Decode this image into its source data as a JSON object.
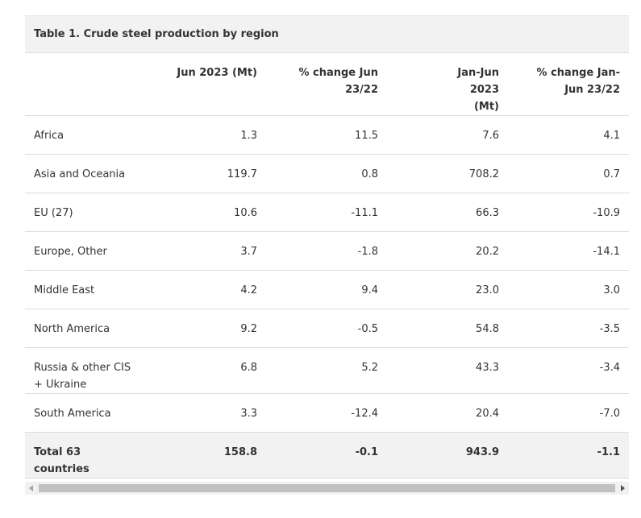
{
  "table": {
    "title": "Table 1. Crude steel production by region",
    "header": [
      "",
      "Jun 2023 (Mt)",
      "% change Jun 23/22",
      "Jan-Jun 2023 (Mt)",
      "% change Jan-Jun 23/22"
    ],
    "rows": [
      [
        "Africa",
        "1.3",
        "11.5",
        "7.6",
        "4.1"
      ],
      [
        "Asia and Oceania",
        "119.7",
        "0.8",
        "708.2",
        "0.7"
      ],
      [
        "EU (27)",
        "10.6",
        "-11.1",
        "66.3",
        "-10.9"
      ],
      [
        "Europe, Other",
        "3.7",
        "-1.8",
        "20.2",
        "-14.1"
      ],
      [
        "Middle East",
        "4.2",
        "9.4",
        "23.0",
        "3.0"
      ],
      [
        "North America",
        "9.2",
        "-0.5",
        "54.8",
        "-3.5"
      ],
      [
        "Russia & other CIS + Ukraine",
        "6.8",
        "5.2",
        "43.3",
        "-3.4"
      ],
      [
        "South America",
        "3.3",
        "-12.4",
        "20.4",
        "-7.0"
      ]
    ],
    "total": [
      "Total 63 countries",
      "158.8",
      "-0.1",
      "943.9",
      "-1.1"
    ]
  }
}
